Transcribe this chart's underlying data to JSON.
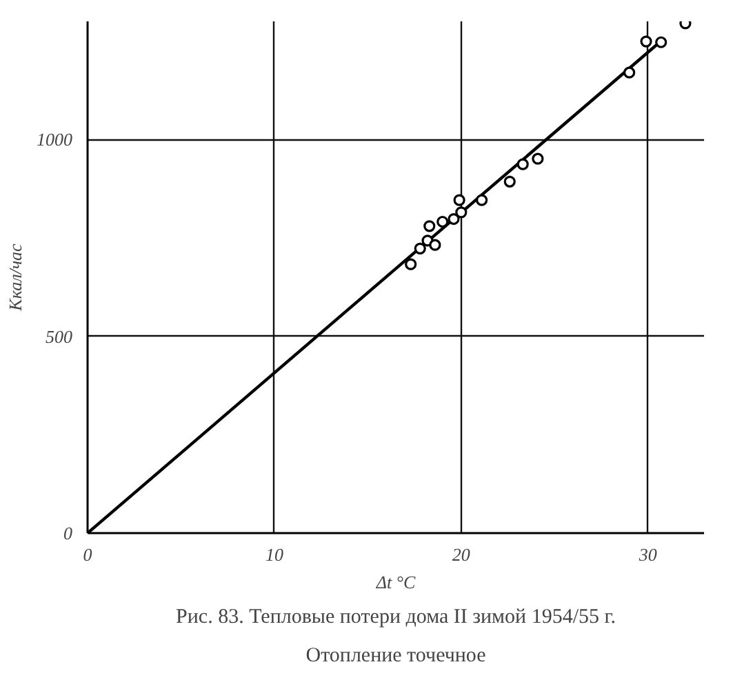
{
  "chart_data": {
    "type": "scatter",
    "title": "Рис. 83. Тепловые потери дома II зимой 1954/55 г.",
    "subtitle": "Отопление точечное",
    "xlabel": "Δt °C",
    "ylabel": "Ккал/час",
    "xlim": [
      0,
      33
    ],
    "ylim": [
      0,
      1300
    ],
    "xticks": [
      0,
      10,
      20,
      30
    ],
    "yticks": [
      0,
      500,
      1000
    ],
    "grid": true,
    "series": [
      {
        "color": "#000000",
        "marker": "circle",
        "x": [
          17.3,
          17.8,
          18.2,
          18.6,
          18.3,
          19.0,
          19.6,
          20.0,
          19.9,
          21.1,
          22.6,
          23.3,
          24.1,
          29.0,
          29.9,
          30.7,
          32.0
        ],
        "values": [
          683,
          723,
          743,
          732,
          780,
          791,
          798,
          815,
          846,
          846,
          893,
          937,
          951,
          1170,
          1249,
          1247,
          1295
        ]
      },
      {
        "type": "line",
        "color": "#000000",
        "x": [
          0,
          30.7
        ],
        "values": [
          0,
          1250
        ],
        "marker": "none"
      }
    ]
  }
}
